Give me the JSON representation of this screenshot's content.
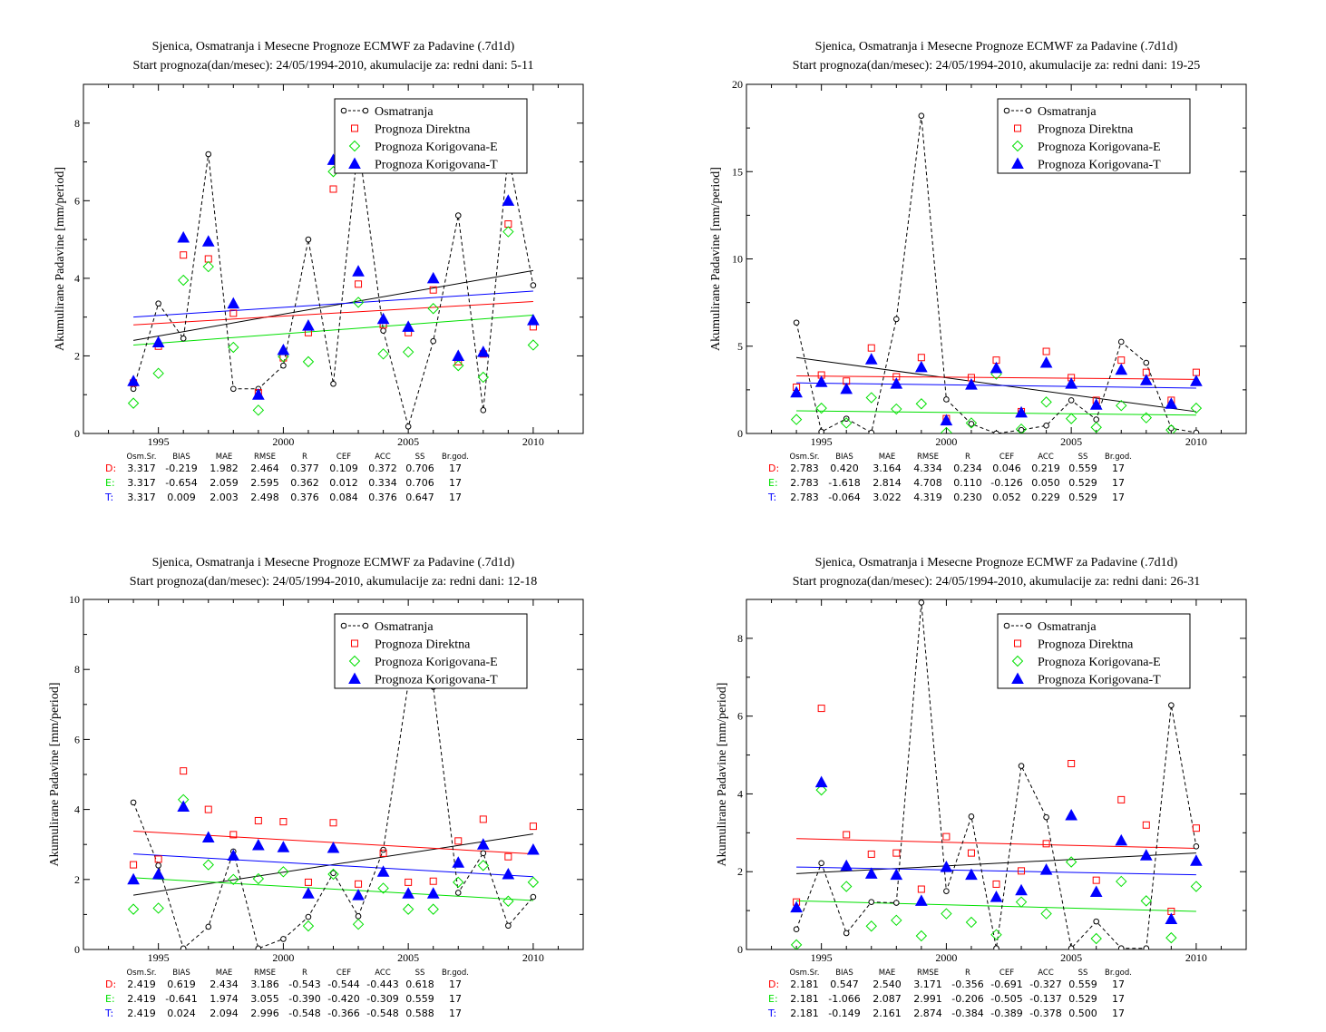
{
  "colors": {
    "obs": "#000000",
    "direct": "#ff0000",
    "corrE": "#00e000",
    "corrT": "#0000ff"
  },
  "legend": [
    "Osmatranja",
    "Prognoza Direktna",
    "Prognoza Korigovana-E",
    "Prognoza Korigovana-T"
  ],
  "stats_header": [
    "Osm.Sr.",
    "BIAS",
    "MAE",
    "RMSE",
    "R",
    "CEF",
    "ACC",
    "SS",
    "Br.god."
  ],
  "chart_data": [
    {
      "type": "scatter",
      "title": "Sjenica, Osmatranja i Mesecne Prognoze ECMWF za Padavine (.7d1d)",
      "subtitle": "Start prognoza(dan/mesec): 24/05/1994-2010, akumulacije za: redni dani: 5-11",
      "ylabel": "Akumulirane Padavine [mm/period]",
      "xlim": [
        1992,
        2012
      ],
      "ylim": [
        0,
        9
      ],
      "xticks": [
        1995,
        2000,
        2005,
        2010
      ],
      "yticks": [
        0,
        2,
        4,
        6,
        8
      ],
      "x": [
        1994,
        1995,
        1996,
        1997,
        1998,
        1999,
        2000,
        2001,
        2002,
        2003,
        2004,
        2005,
        2006,
        2007,
        2008,
        2009,
        2010
      ],
      "series": [
        {
          "name": "Osmatranja",
          "values": [
            1.15,
            3.35,
            2.45,
            7.2,
            1.15,
            1.15,
            1.75,
            5.0,
            1.28,
            7.5,
            2.65,
            0.18,
            2.38,
            5.62,
            0.6,
            7.2,
            3.82
          ]
        },
        {
          "name": "Prognoza Direktna",
          "values": [
            1.3,
            2.25,
            4.6,
            4.5,
            3.1,
            1.05,
            1.95,
            2.6,
            6.3,
            3.85,
            2.8,
            2.6,
            3.7,
            1.85,
            2.05,
            5.4,
            2.75
          ]
        },
        {
          "name": "Prognoza Korigovana-E",
          "values": [
            0.78,
            1.55,
            3.95,
            4.3,
            2.22,
            0.6,
            1.98,
            1.85,
            6.75,
            3.38,
            2.05,
            2.1,
            3.22,
            1.75,
            1.45,
            5.2,
            2.28
          ]
        },
        {
          "name": "Prognoza Korigovana-T",
          "values": [
            1.35,
            2.35,
            5.05,
            4.95,
            3.35,
            1.0,
            2.15,
            2.78,
            7.05,
            4.18,
            2.95,
            2.75,
            4.0,
            2.0,
            2.1,
            6.0,
            2.92
          ]
        }
      ],
      "trends": [
        {
          "name": "Osmatranja",
          "start": 2.4,
          "end": 4.2
        },
        {
          "name": "Prognoza Direktna",
          "start": 2.8,
          "end": 3.4
        },
        {
          "name": "Prognoza Korigovana-E",
          "start": 2.28,
          "end": 3.05
        },
        {
          "name": "Prognoza Korigovana-T",
          "start": 3.0,
          "end": 3.67
        }
      ],
      "stats": [
        {
          "label": "D:",
          "values": [
            "3.317",
            "-0.219",
            "1.982",
            "2.464",
            "0.377",
            "0.109",
            "0.372",
            "0.706",
            "17"
          ]
        },
        {
          "label": "E:",
          "values": [
            "3.317",
            "-0.654",
            "2.059",
            "2.595",
            "0.362",
            "0.012",
            "0.334",
            "0.706",
            "17"
          ]
        },
        {
          "label": "T:",
          "values": [
            "3.317",
            "0.009",
            "2.003",
            "2.498",
            "0.376",
            "0.084",
            "0.376",
            "0.647",
            "17"
          ]
        }
      ]
    },
    {
      "type": "scatter",
      "title": "Sjenica, Osmatranja i Mesecne Prognoze ECMWF za Padavine (.7d1d)",
      "subtitle": "Start prognoza(dan/mesec): 24/05/1994-2010, akumulacije za: redni dani: 19-25",
      "ylabel": "Akumulirane Padavine [mm/period]",
      "xlim": [
        1992,
        2012
      ],
      "ylim": [
        0,
        20
      ],
      "xticks": [
        1995,
        2000,
        2005,
        2010
      ],
      "yticks": [
        0,
        5,
        10,
        15,
        20
      ],
      "x": [
        1994,
        1995,
        1996,
        1997,
        1998,
        1999,
        2000,
        2001,
        2002,
        2003,
        2004,
        2005,
        2006,
        2007,
        2008,
        2009,
        2010
      ],
      "series": [
        {
          "name": "Osmatranja",
          "values": [
            6.35,
            0.1,
            0.85,
            0.05,
            6.55,
            18.2,
            1.95,
            0.55,
            0.0,
            0.2,
            0.45,
            1.9,
            0.8,
            5.25,
            4.05,
            0.3,
            0.05
          ]
        },
        {
          "name": "Prognoza Direktna",
          "values": [
            2.65,
            3.35,
            3.0,
            4.9,
            3.25,
            4.35,
            0.85,
            3.2,
            4.2,
            1.25,
            4.7,
            3.2,
            1.9,
            4.2,
            3.5,
            1.9,
            3.5
          ]
        },
        {
          "name": "Prognoza Korigovana-E",
          "values": [
            0.8,
            1.45,
            0.6,
            2.05,
            1.4,
            1.7,
            0.05,
            0.6,
            3.4,
            0.25,
            1.8,
            0.85,
            0.35,
            1.6,
            0.9,
            0.2,
            1.45
          ]
        },
        {
          "name": "Prognoza Korigovana-T",
          "values": [
            2.35,
            2.95,
            2.55,
            4.25,
            2.85,
            3.8,
            0.75,
            2.8,
            3.75,
            1.2,
            4.05,
            2.85,
            1.65,
            3.65,
            3.05,
            1.7,
            3.0
          ]
        }
      ],
      "trends": [
        {
          "name": "Osmatranja",
          "start": 4.35,
          "end": 1.25
        },
        {
          "name": "Prognoza Direktna",
          "start": 3.3,
          "end": 3.1
        },
        {
          "name": "Prognoza Korigovana-E",
          "start": 1.3,
          "end": 1.05
        },
        {
          "name": "Prognoza Korigovana-T",
          "start": 2.9,
          "end": 2.6
        }
      ],
      "stats": [
        {
          "label": "D:",
          "values": [
            "2.783",
            "0.420",
            "3.164",
            "4.334",
            "0.234",
            "0.046",
            "0.219",
            "0.559",
            "17"
          ]
        },
        {
          "label": "E:",
          "values": [
            "2.783",
            "-1.618",
            "2.814",
            "4.708",
            "0.110",
            "-0.126",
            "0.050",
            "0.529",
            "17"
          ]
        },
        {
          "label": "T:",
          "values": [
            "2.783",
            "-0.064",
            "3.022",
            "4.319",
            "0.230",
            "0.052",
            "0.229",
            "0.529",
            "17"
          ]
        }
      ]
    },
    {
      "type": "scatter",
      "title": "Sjenica, Osmatranja i Mesecne Prognoze ECMWF za Padavine (.7d1d)",
      "subtitle": "Start prognoza(dan/mesec): 24/05/1994-2010, akumulacije za: redni dani: 12-18",
      "ylabel": "Akumulirane Padavine [mm/period]",
      "xlim": [
        1992,
        2012
      ],
      "ylim": [
        0,
        10
      ],
      "xticks": [
        1995,
        2000,
        2005,
        2010
      ],
      "yticks": [
        0,
        2,
        4,
        6,
        8,
        10
      ],
      "x": [
        1994,
        1995,
        1996,
        1997,
        1998,
        1999,
        2000,
        2001,
        2002,
        2003,
        2004,
        2005,
        2006,
        2007,
        2008,
        2009,
        2010
      ],
      "series": [
        {
          "name": "Osmatranja",
          "values": [
            4.2,
            2.4,
            0.03,
            0.65,
            2.8,
            0.03,
            0.3,
            0.93,
            2.18,
            0.95,
            2.85,
            7.6,
            7.5,
            1.62,
            2.75,
            0.68,
            1.5
          ]
        },
        {
          "name": "Prognoza Direktna",
          "values": [
            2.42,
            2.58,
            5.1,
            4.0,
            3.28,
            3.68,
            3.65,
            1.92,
            3.62,
            1.87,
            2.75,
            1.92,
            1.95,
            3.1,
            3.72,
            2.65,
            3.52
          ]
        },
        {
          "name": "Prognoza Korigovana-E",
          "values": [
            1.15,
            1.18,
            4.28,
            2.42,
            2.0,
            2.02,
            2.22,
            0.67,
            2.15,
            0.72,
            1.75,
            1.15,
            1.15,
            1.92,
            2.4,
            1.38,
            1.92
          ]
        },
        {
          "name": "Prognoza Korigovana-T",
          "values": [
            2.0,
            2.15,
            4.08,
            3.2,
            2.68,
            2.98,
            2.92,
            1.6,
            2.9,
            1.55,
            2.22,
            1.6,
            1.6,
            2.48,
            3.0,
            2.15,
            2.85
          ]
        }
      ],
      "trends": [
        {
          "name": "Osmatranja",
          "start": 1.55,
          "end": 3.3
        },
        {
          "name": "Prognoza Direktna",
          "start": 3.38,
          "end": 2.73
        },
        {
          "name": "Prognoza Korigovana-E",
          "start": 2.05,
          "end": 1.4
        },
        {
          "name": "Prognoza Korigovana-T",
          "start": 2.73,
          "end": 2.08
        }
      ],
      "stats": [
        {
          "label": "D:",
          "values": [
            "2.419",
            "0.619",
            "2.434",
            "3.186",
            "-0.543",
            "-0.544",
            "-0.443",
            "0.618",
            "17"
          ]
        },
        {
          "label": "E:",
          "values": [
            "2.419",
            "-0.641",
            "1.974",
            "3.055",
            "-0.390",
            "-0.420",
            "-0.309",
            "0.559",
            "17"
          ]
        },
        {
          "label": "T:",
          "values": [
            "2.419",
            "0.024",
            "2.094",
            "2.996",
            "-0.548",
            "-0.366",
            "-0.548",
            "0.588",
            "17"
          ]
        }
      ]
    },
    {
      "type": "scatter",
      "title": "Sjenica, Osmatranja i Mesecne Prognoze ECMWF za Padavine (.7d1d)",
      "subtitle": "Start prognoza(dan/mesec): 24/05/1994-2010, akumulacije za: redni dani: 26-31",
      "ylabel": "Akumulirane Padavine [mm/period]",
      "xlim": [
        1992,
        2012
      ],
      "ylim": [
        0,
        9
      ],
      "xticks": [
        1995,
        2000,
        2005,
        2010
      ],
      "yticks": [
        0,
        2,
        4,
        6,
        8
      ],
      "x": [
        1994,
        1995,
        1996,
        1997,
        1998,
        1999,
        2000,
        2001,
        2002,
        2003,
        2004,
        2005,
        2006,
        2007,
        2008,
        2009,
        2010
      ],
      "series": [
        {
          "name": "Osmatranja",
          "values": [
            0.52,
            2.22,
            0.42,
            1.22,
            1.2,
            8.92,
            1.5,
            3.42,
            0.03,
            4.72,
            3.4,
            0.03,
            0.72,
            0.03,
            0.03,
            6.28,
            2.65
          ]
        },
        {
          "name": "Prognoza Direktna",
          "values": [
            1.22,
            6.2,
            2.95,
            2.45,
            2.48,
            1.55,
            2.9,
            2.48,
            1.68,
            2.02,
            2.72,
            4.78,
            1.78,
            3.85,
            3.2,
            0.98,
            3.12
          ]
        },
        {
          "name": "Prognoza Korigovana-E",
          "values": [
            0.12,
            4.1,
            1.62,
            0.6,
            0.75,
            0.35,
            0.92,
            0.7,
            0.38,
            1.22,
            0.92,
            2.25,
            0.28,
            1.75,
            1.25,
            0.3,
            1.62
          ]
        },
        {
          "name": "Prognoza Korigovana-T",
          "values": [
            1.08,
            4.3,
            2.15,
            1.95,
            1.92,
            1.25,
            2.12,
            1.92,
            1.35,
            1.52,
            2.05,
            3.45,
            1.48,
            2.8,
            2.42,
            0.78,
            2.28
          ]
        }
      ],
      "trends": [
        {
          "name": "Osmatranja",
          "start": 1.95,
          "end": 2.48
        },
        {
          "name": "Prognoza Direktna",
          "start": 2.85,
          "end": 2.6
        },
        {
          "name": "Prognoza Korigovana-E",
          "start": 1.25,
          "end": 0.98
        },
        {
          "name": "Prognoza Korigovana-T",
          "start": 2.12,
          "end": 1.92
        }
      ],
      "stats": [
        {
          "label": "D:",
          "values": [
            "2.181",
            "0.547",
            "2.540",
            "3.171",
            "-0.356",
            "-0.691",
            "-0.327",
            "0.559",
            "17"
          ]
        },
        {
          "label": "E:",
          "values": [
            "2.181",
            "-1.066",
            "2.087",
            "2.991",
            "-0.206",
            "-0.505",
            "-0.137",
            "0.529",
            "17"
          ]
        },
        {
          "label": "T:",
          "values": [
            "2.181",
            "-0.149",
            "2.161",
            "2.874",
            "-0.384",
            "-0.389",
            "-0.378",
            "0.500",
            "17"
          ]
        }
      ]
    }
  ]
}
